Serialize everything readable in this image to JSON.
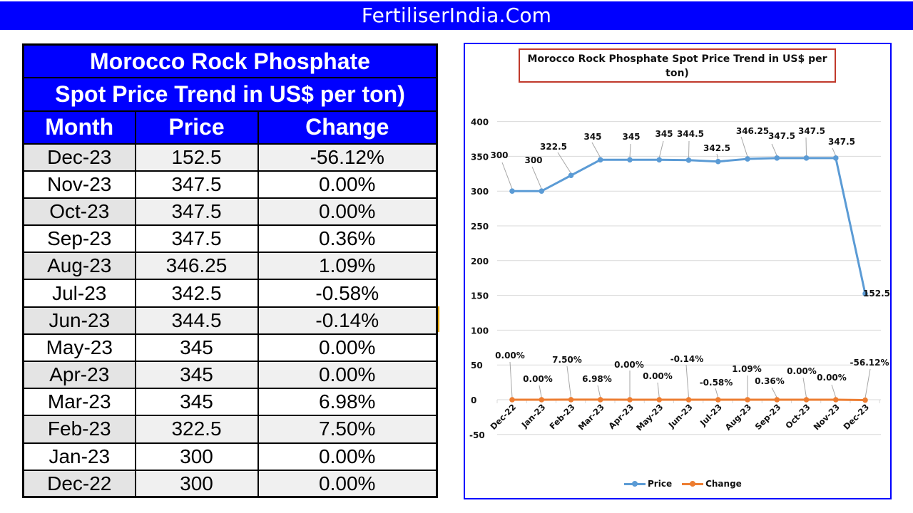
{
  "banner": {
    "title": "FertiliserIndia.Com"
  },
  "table": {
    "title_line1": "Morocco Rock Phosphate",
    "title_line2": "Spot Price Trend in US$ per ton)",
    "headers": [
      "Month",
      "Price",
      "Change"
    ],
    "rows": [
      {
        "month": "Dec-23",
        "price": "152.5",
        "change": "-56.12%"
      },
      {
        "month": "Nov-23",
        "price": "347.5",
        "change": "0.00%"
      },
      {
        "month": "Oct-23",
        "price": "347.5",
        "change": "0.00%"
      },
      {
        "month": "Sep-23",
        "price": "347.5",
        "change": "0.36%"
      },
      {
        "month": "Aug-23",
        "price": "346.25",
        "change": "1.09%"
      },
      {
        "month": "Jul-23",
        "price": "342.5",
        "change": "-0.58%"
      },
      {
        "month": "Jun-23",
        "price": "344.5",
        "change": "-0.14%"
      },
      {
        "month": "May-23",
        "price": "345",
        "change": "0.00%"
      },
      {
        "month": "Apr-23",
        "price": "345",
        "change": "0.00%"
      },
      {
        "month": "Mar-23",
        "price": "345",
        "change": "6.98%"
      },
      {
        "month": "Feb-23",
        "price": "322.5",
        "change": "7.50%"
      },
      {
        "month": "Jan-23",
        "price": "300",
        "change": "0.00%"
      },
      {
        "month": "Dec-22",
        "price": "300",
        "change": "0.00%"
      }
    ]
  },
  "colors": {
    "banner_bg": "#0000ff",
    "header_bg": "#0000ff",
    "price_series": "#5b9bd5",
    "change_series": "#ed7d31",
    "chart_border": "#0000ff",
    "title_border": "#c0392b"
  },
  "chart_data": {
    "type": "line",
    "title": "Morocco Rock Phosphate Spot Price Trend in US$ per ton)",
    "xlabel": "",
    "ylabel": "",
    "ylim": [
      -50,
      400
    ],
    "yticks": [
      400,
      350,
      300,
      250,
      200,
      150,
      100,
      50,
      0,
      -50
    ],
    "grid": true,
    "legend_position": "bottom",
    "categories": [
      "Dec-22",
      "Jan-23",
      "Feb-23",
      "Mar-23",
      "Apr-23",
      "May-23",
      "Jun-23",
      "Jul-23",
      "Aug-23",
      "Sep-23",
      "Oct-23",
      "Nov-23",
      "Dec-23"
    ],
    "series": [
      {
        "name": "Price",
        "values": [
          300,
          300,
          322.5,
          345,
          345,
          345,
          344.5,
          342.5,
          346.25,
          347.5,
          347.5,
          347.5,
          152.5
        ],
        "labels": [
          "300",
          "300",
          "322.5",
          "345",
          "345",
          "345",
          "344.5",
          "342.5",
          "346.25",
          "347.5",
          "347.5",
          "347.5",
          "152.5"
        ]
      },
      {
        "name": "Change",
        "values": [
          0.0,
          0.0,
          7.5,
          6.98,
          0.0,
          0.0,
          -0.14,
          -0.58,
          1.09,
          0.36,
          0.0,
          0.0,
          -56.12
        ],
        "plotted_values": [
          0,
          0,
          0.075,
          0.0698,
          0,
          0,
          -0.0014,
          -0.0058,
          0.0109,
          0.0036,
          0,
          0,
          -0.5612
        ],
        "labels": [
          "0.00%",
          "0.00%",
          "7.50%",
          "6.98%",
          "0.00%",
          "0.00%",
          "-0.14%",
          "-0.58%",
          "1.09%",
          "0.36%",
          "0.00%",
          "0.00%",
          "-56.12%"
        ]
      }
    ]
  }
}
